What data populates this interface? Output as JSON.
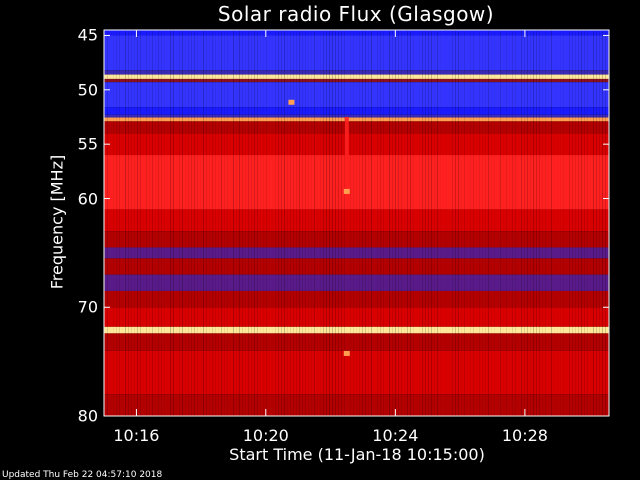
{
  "chart_data": {
    "type": "heatmap",
    "title": "Solar radio Flux (Glasgow)",
    "xlabel": "Start Time (11-Jan-18 10:15:00)",
    "ylabel": "Frequency [MHz]",
    "x_range_minutes": [
      10.25,
      10.51
    ],
    "y_range_mhz": [
      44.5,
      80
    ],
    "x_ticks": [
      {
        "label": "10:16",
        "value_minutes": 10.2667
      },
      {
        "label": "10:20",
        "value_minutes": 10.3333
      },
      {
        "label": "10:24",
        "value_minutes": 10.4
      },
      {
        "label": "10:28",
        "value_minutes": 10.4667
      }
    ],
    "y_ticks": [
      45,
      50,
      55,
      60,
      70,
      80
    ],
    "colormap": [
      "#000000",
      "#1b1bff",
      "#3434ff",
      "#3a2ab8",
      "#5a1b8a",
      "#8a1020",
      "#b30000",
      "#d80000",
      "#ee1010",
      "#ff2020",
      "#ffa050",
      "#ffe89a"
    ],
    "bands_mhz": [
      {
        "from": 44.5,
        "to": 45.0,
        "level": 0.05
      },
      {
        "from": 45.0,
        "to": 48.2,
        "level": 0.16
      },
      {
        "from": 48.2,
        "to": 48.6,
        "level": 0.3
      },
      {
        "from": 48.6,
        "to": 49.0,
        "level": 0.98
      },
      {
        "from": 49.0,
        "to": 49.3,
        "level": 0.45
      },
      {
        "from": 49.3,
        "to": 51.6,
        "level": 0.17
      },
      {
        "from": 51.6,
        "to": 52.3,
        "level": 0.13
      },
      {
        "from": 52.3,
        "to": 52.55,
        "level": 0.3
      },
      {
        "from": 52.55,
        "to": 52.9,
        "level": 0.9
      },
      {
        "from": 52.9,
        "to": 54.0,
        "level": 0.55
      },
      {
        "from": 54.0,
        "to": 56.0,
        "level": 0.62
      },
      {
        "from": 56.0,
        "to": 61.0,
        "level": 0.8
      },
      {
        "from": 61.0,
        "to": 63.0,
        "level": 0.65
      },
      {
        "from": 63.0,
        "to": 64.5,
        "level": 0.55
      },
      {
        "from": 64.5,
        "to": 65.5,
        "level": 0.33
      },
      {
        "from": 65.5,
        "to": 67.0,
        "level": 0.5
      },
      {
        "from": 67.0,
        "to": 68.5,
        "level": 0.35
      },
      {
        "from": 68.5,
        "to": 70.0,
        "level": 0.55
      },
      {
        "from": 70.0,
        "to": 71.8,
        "level": 0.62
      },
      {
        "from": 71.8,
        "to": 72.4,
        "level": 0.97
      },
      {
        "from": 72.4,
        "to": 74.0,
        "level": 0.55
      },
      {
        "from": 74.0,
        "to": 78.0,
        "level": 0.6
      },
      {
        "from": 78.0,
        "to": 80.0,
        "level": 0.5
      }
    ],
    "features": [
      {
        "type": "vertical_streak",
        "time_minutes": 10.375,
        "from_mhz": 52.5,
        "to_mhz": 60,
        "level": 0.85
      },
      {
        "type": "spot",
        "time_minutes": 10.3465,
        "mhz": 51.1,
        "level": 0.88
      },
      {
        "type": "spot",
        "time_minutes": 10.375,
        "mhz": 59.3,
        "level": 0.95
      },
      {
        "type": "spot",
        "time_minutes": 10.375,
        "mhz": 74.2,
        "level": 0.9
      }
    ]
  },
  "footer": "Updated Thu Feb 22 04:57:10 2018"
}
